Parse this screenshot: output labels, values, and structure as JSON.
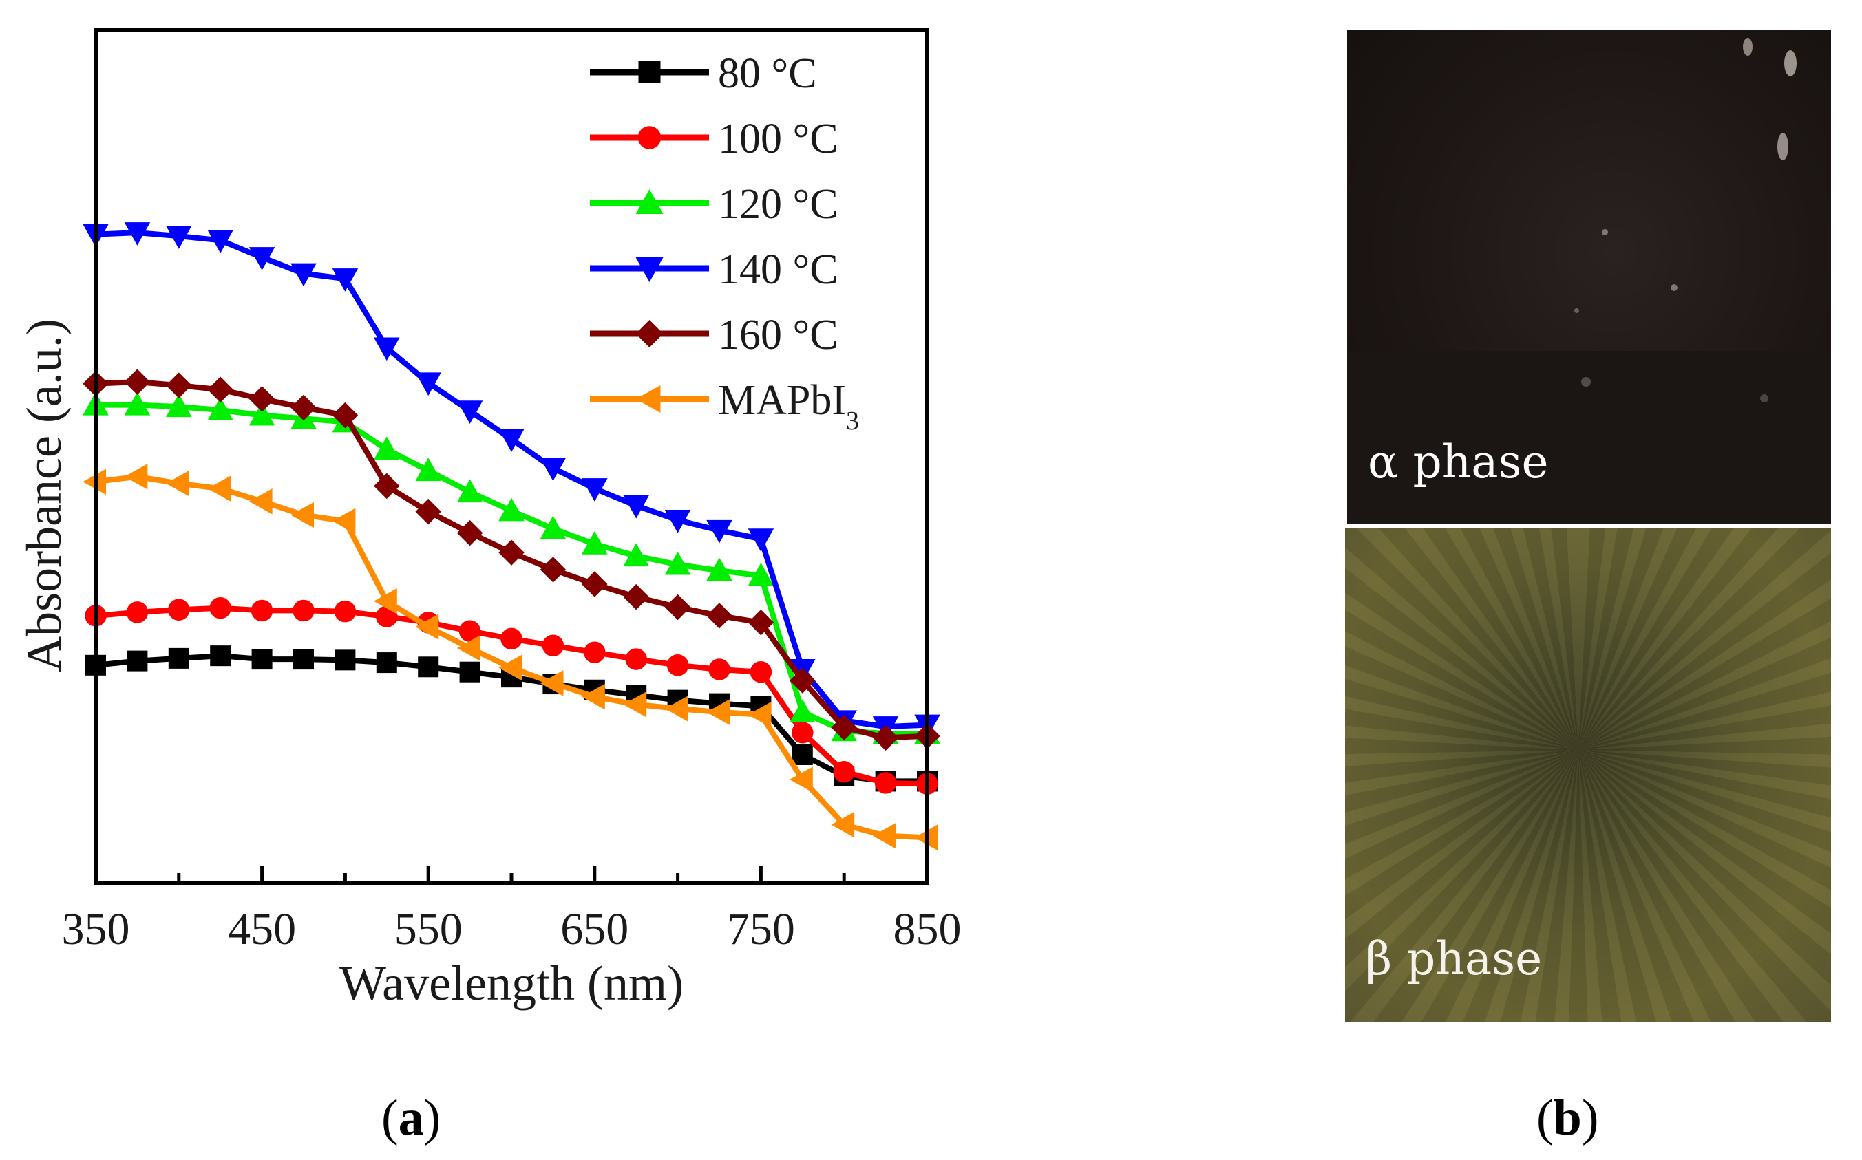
{
  "chart_data": {
    "type": "line",
    "title": "",
    "xlabel": "Wavelength (nm)",
    "ylabel": "Absorbance (a.u.)",
    "xlim": [
      350,
      850
    ],
    "ylim": [
      0,
      1
    ],
    "x_ticks": [
      350,
      450,
      550,
      650,
      750,
      850
    ],
    "x": [
      350,
      375,
      400,
      425,
      450,
      475,
      500,
      525,
      550,
      575,
      600,
      625,
      650,
      675,
      700,
      725,
      750,
      775,
      800,
      825,
      850
    ],
    "legend_position": "top-right",
    "series": [
      {
        "name": "80 °C",
        "label": "80 °C",
        "color": "#000000",
        "marker": "square",
        "values": [
          0.255,
          0.26,
          0.263,
          0.266,
          0.262,
          0.262,
          0.261,
          0.258,
          0.253,
          0.247,
          0.241,
          0.233,
          0.226,
          0.22,
          0.214,
          0.21,
          0.207,
          0.15,
          0.125,
          0.119,
          0.119
        ]
      },
      {
        "name": "100 °C",
        "label": "100 °C",
        "color": "#ff0000",
        "marker": "circle",
        "values": [
          0.313,
          0.317,
          0.32,
          0.322,
          0.319,
          0.319,
          0.318,
          0.312,
          0.305,
          0.295,
          0.286,
          0.278,
          0.27,
          0.262,
          0.255,
          0.25,
          0.247,
          0.176,
          0.13,
          0.117,
          0.116
        ]
      },
      {
        "name": "120 °C",
        "label": "120 °C",
        "color": "#00ee00",
        "marker": "triangle-up",
        "values": [
          0.56,
          0.56,
          0.558,
          0.554,
          0.548,
          0.544,
          0.54,
          0.508,
          0.483,
          0.458,
          0.436,
          0.415,
          0.397,
          0.383,
          0.373,
          0.366,
          0.36,
          0.2,
          0.178,
          0.175,
          0.175
        ]
      },
      {
        "name": "140 °C",
        "label": "140 °C",
        "color": "#0000ff",
        "marker": "triangle-down",
        "values": [
          0.76,
          0.762,
          0.758,
          0.753,
          0.733,
          0.714,
          0.708,
          0.627,
          0.586,
          0.553,
          0.52,
          0.486,
          0.462,
          0.442,
          0.425,
          0.413,
          0.403,
          0.25,
          0.19,
          0.183,
          0.185
        ]
      },
      {
        "name": "160 °C",
        "label": "160 °C",
        "color": "#800000",
        "marker": "diamond",
        "values": [
          0.585,
          0.587,
          0.583,
          0.578,
          0.567,
          0.557,
          0.548,
          0.465,
          0.435,
          0.41,
          0.387,
          0.367,
          0.35,
          0.335,
          0.323,
          0.313,
          0.305,
          0.237,
          0.182,
          0.17,
          0.172
        ]
      },
      {
        "name": "MAPbI3",
        "label_main": "MAPbI",
        "label_sub": "3",
        "color": "#ff8c00",
        "marker": "triangle-left",
        "values": [
          0.47,
          0.476,
          0.468,
          0.462,
          0.447,
          0.431,
          0.424,
          0.33,
          0.3,
          0.275,
          0.252,
          0.234,
          0.218,
          0.209,
          0.204,
          0.2,
          0.197,
          0.121,
          0.068,
          0.055,
          0.053
        ]
      }
    ]
  },
  "panels": {
    "a_open": "(",
    "a_letter": "a",
    "a_close": ")",
    "b_open": "(",
    "b_letter": "b",
    "b_close": ")"
  },
  "photos": {
    "alpha_label": "α phase",
    "beta_label": "β phase"
  }
}
